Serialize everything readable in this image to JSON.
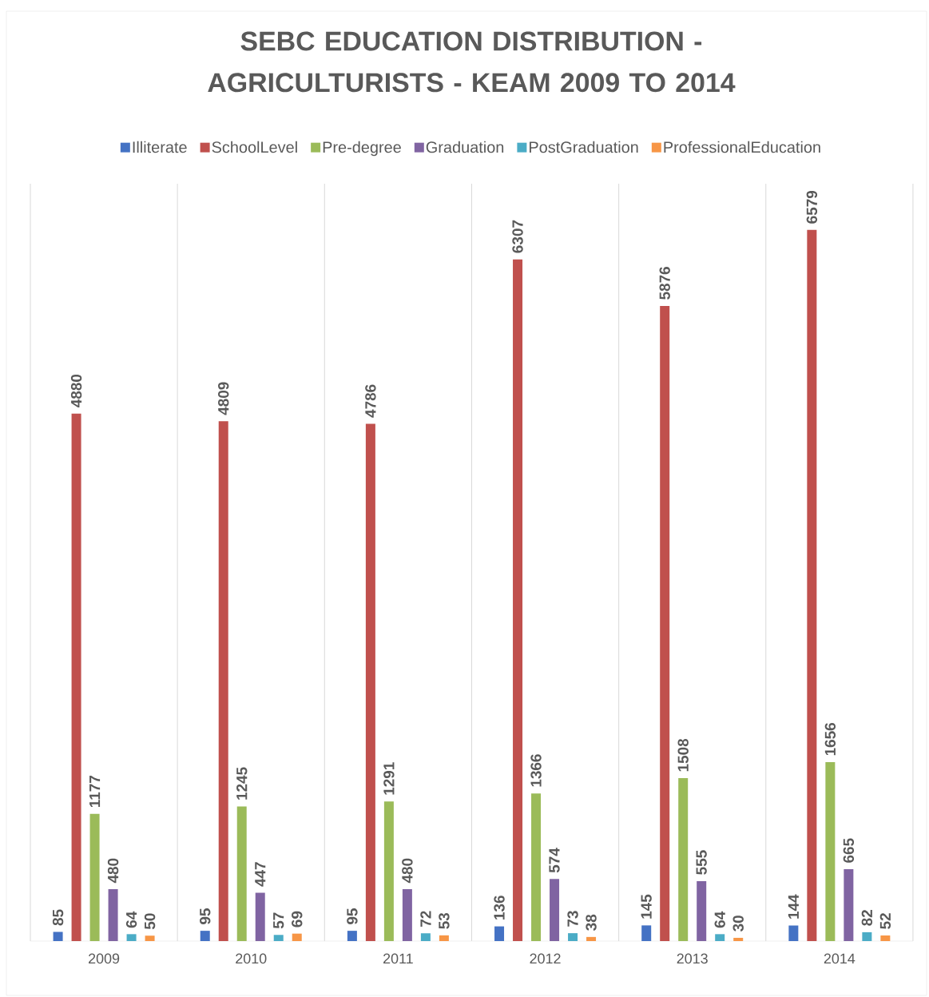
{
  "chart_data": {
    "type": "bar",
    "title": "SEBC EDUCATION DISTRIBUTION - AGRICULTURISTS - KEAM 2009 TO 2014",
    "categories": [
      "2009",
      "2010",
      "2011",
      "2012",
      "2013",
      "2014"
    ],
    "series": [
      {
        "name": "Illiterate",
        "color": "#4472c4",
        "values": [
          85,
          95,
          95,
          136,
          145,
          144
        ]
      },
      {
        "name": "SchoolLevel",
        "color": "#c0504d",
        "values": [
          4880,
          4809,
          4786,
          6307,
          5876,
          6579
        ]
      },
      {
        "name": "Pre-degree",
        "color": "#9bbb59",
        "values": [
          1177,
          1245,
          1291,
          1366,
          1508,
          1656
        ]
      },
      {
        "name": "Graduation",
        "color": "#8064a2",
        "values": [
          480,
          447,
          480,
          574,
          555,
          665
        ]
      },
      {
        "name": "PostGraduation",
        "color": "#4bacc6",
        "values": [
          64,
          57,
          72,
          73,
          64,
          82
        ]
      },
      {
        "name": "ProfessionalEducation",
        "color": "#f79646",
        "values": [
          50,
          69,
          53,
          38,
          30,
          52
        ]
      }
    ],
    "data_labels": true,
    "legend": "top",
    "grid": "x"
  }
}
